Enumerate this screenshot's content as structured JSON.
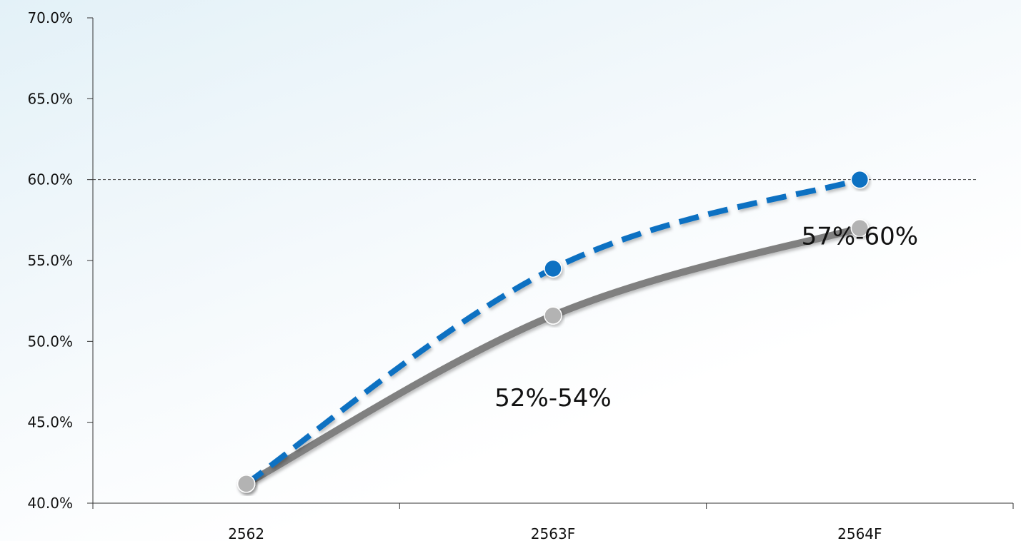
{
  "chart_data": {
    "type": "line",
    "categories": [
      "2562",
      "2563F",
      "2564F"
    ],
    "ylim": [
      40.0,
      70.0
    ],
    "y_ticks": [
      "40.0%",
      "45.0%",
      "50.0%",
      "55.0%",
      "60.0%",
      "65.0%",
      "70.0%"
    ],
    "reference_line": {
      "y": 60.0,
      "style": "dashed"
    },
    "series": [
      {
        "values": [
          41.2,
          51.6,
          57.0
        ],
        "color": "#808080",
        "line_style": "solid",
        "marker_color": "#b3b3b3"
      },
      {
        "values": [
          41.2,
          54.5,
          60.0
        ],
        "color": "#0f71c2",
        "line_style": "dashed",
        "marker_color": "#0f71c2"
      }
    ],
    "annotations": [
      {
        "text": "52%-54%",
        "x": "2563F",
        "y": 46.0
      },
      {
        "text": "57%-60%",
        "x": "2564F",
        "y": 56.0
      }
    ],
    "grid": false,
    "legend": "none"
  }
}
